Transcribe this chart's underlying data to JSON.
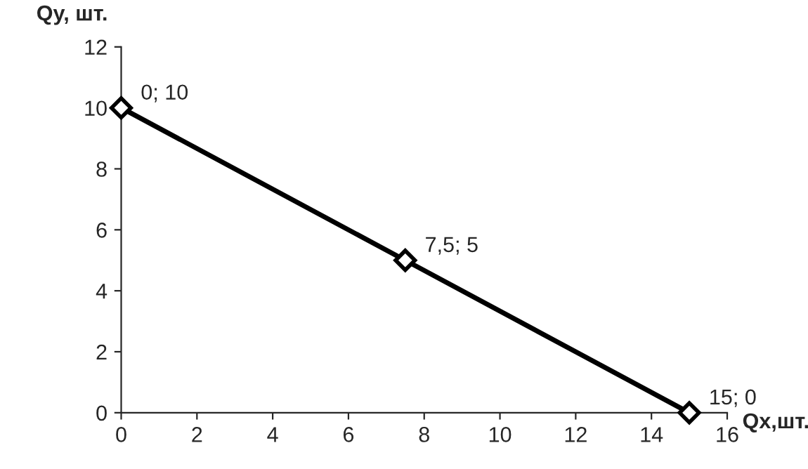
{
  "chart_data": {
    "type": "line",
    "xlabel": "Qx,шт.",
    "ylabel": "Qy, шт.",
    "x": [
      0,
      7.5,
      15
    ],
    "series": [
      {
        "color": "#000000",
        "values": [
          10,
          5,
          0
        ]
      }
    ],
    "annotations": [
      {
        "text": "0; 10",
        "x": 0,
        "y": 10
      },
      {
        "text": "7,5; 5",
        "x": 7.5,
        "y": 5
      },
      {
        "text": "15; 0",
        "x": 15,
        "y": 0
      }
    ],
    "xlim": [
      0,
      16
    ],
    "xticks": [
      0,
      2,
      4,
      6,
      8,
      10,
      12,
      14,
      16
    ],
    "ylim": [
      0,
      12
    ],
    "yticks": [
      0,
      2,
      4,
      6,
      8,
      10,
      12
    ],
    "grid": false,
    "legend": false,
    "marker": "diamond",
    "line_style": "solid"
  }
}
